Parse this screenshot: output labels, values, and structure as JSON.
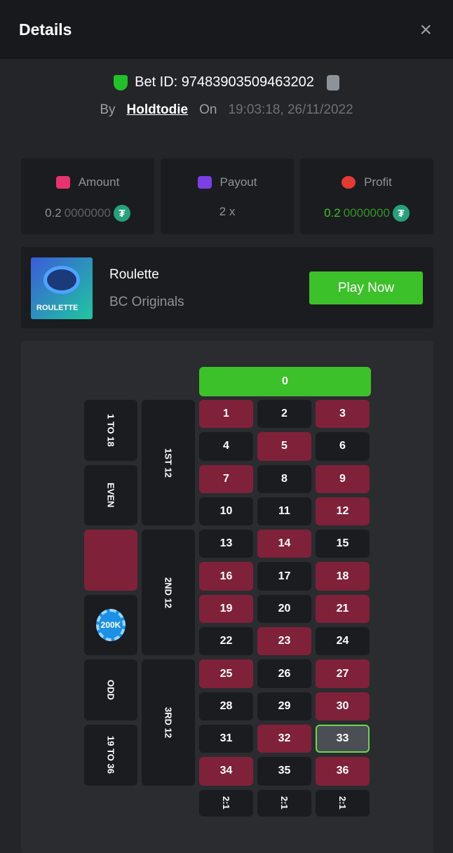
{
  "header": {
    "title": "Details",
    "close": "×"
  },
  "bet": {
    "id_label": "Bet ID: 97483903509463202",
    "by": "By",
    "user": "Holdtodie",
    "on": "On",
    "datetime": "19:03:18, 26/11/2022"
  },
  "stats": [
    {
      "label": "Amount",
      "value_main": "0.2",
      "value_dim": "0000000",
      "icon": "amount-icon",
      "color": "#e8336f"
    },
    {
      "label": "Payout",
      "value_main": "2 x",
      "value_dim": "",
      "icon": "payout-card-icon",
      "color": "#7b3fe4"
    },
    {
      "label": "Profit",
      "value_main": "0.2",
      "value_dim": "0000000",
      "icon": "profit-icon",
      "color": "#e53935"
    }
  ],
  "currency_symbol": "₮",
  "game": {
    "thumb_label": "ROULETTE",
    "name": "Roulette",
    "provider": "BC Originals",
    "play": "Play Now"
  },
  "board": {
    "zero": "0",
    "low": "1 TO 18",
    "even": "EVEN",
    "odd": "ODD",
    "high": "19 TO 36",
    "dozens": [
      "1ST 12",
      "2ND 12",
      "3RD 12"
    ],
    "column_bet": "2:1",
    "chip": "200K",
    "red_numbers": [
      1,
      3,
      5,
      7,
      9,
      12,
      14,
      16,
      18,
      19,
      21,
      23,
      25,
      27,
      30,
      32,
      34,
      36
    ],
    "highlighted": 33
  }
}
